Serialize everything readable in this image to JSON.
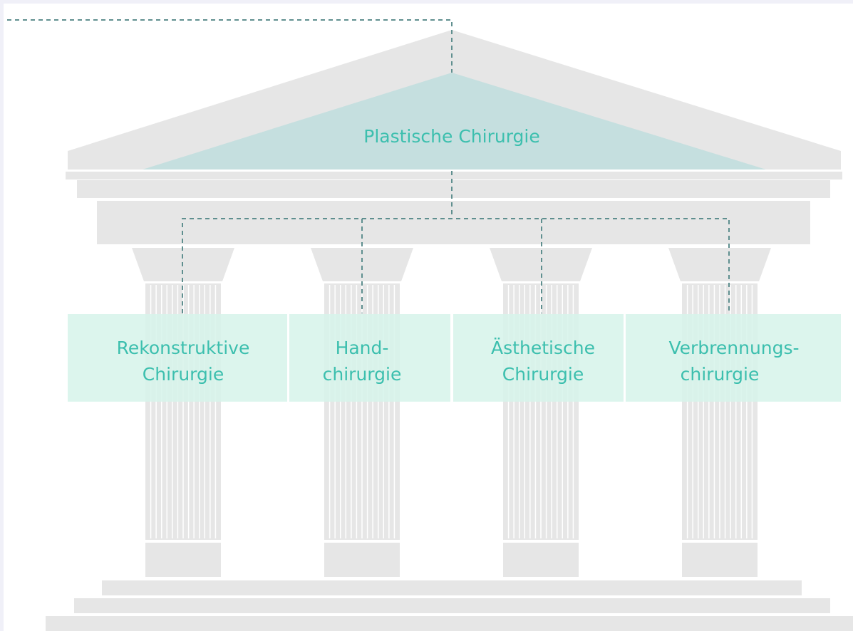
{
  "roof": {
    "label": "Plastische Chirurgie"
  },
  "pillars": [
    {
      "lines": [
        "Rekonstruktive",
        "Chirurgie"
      ]
    },
    {
      "lines": [
        "Hand-",
        "chirurgie"
      ]
    },
    {
      "lines": [
        "Ästhetische",
        "Chirurgie"
      ]
    },
    {
      "lines": [
        "Verbrennungs-",
        "chirurgie"
      ]
    }
  ]
}
